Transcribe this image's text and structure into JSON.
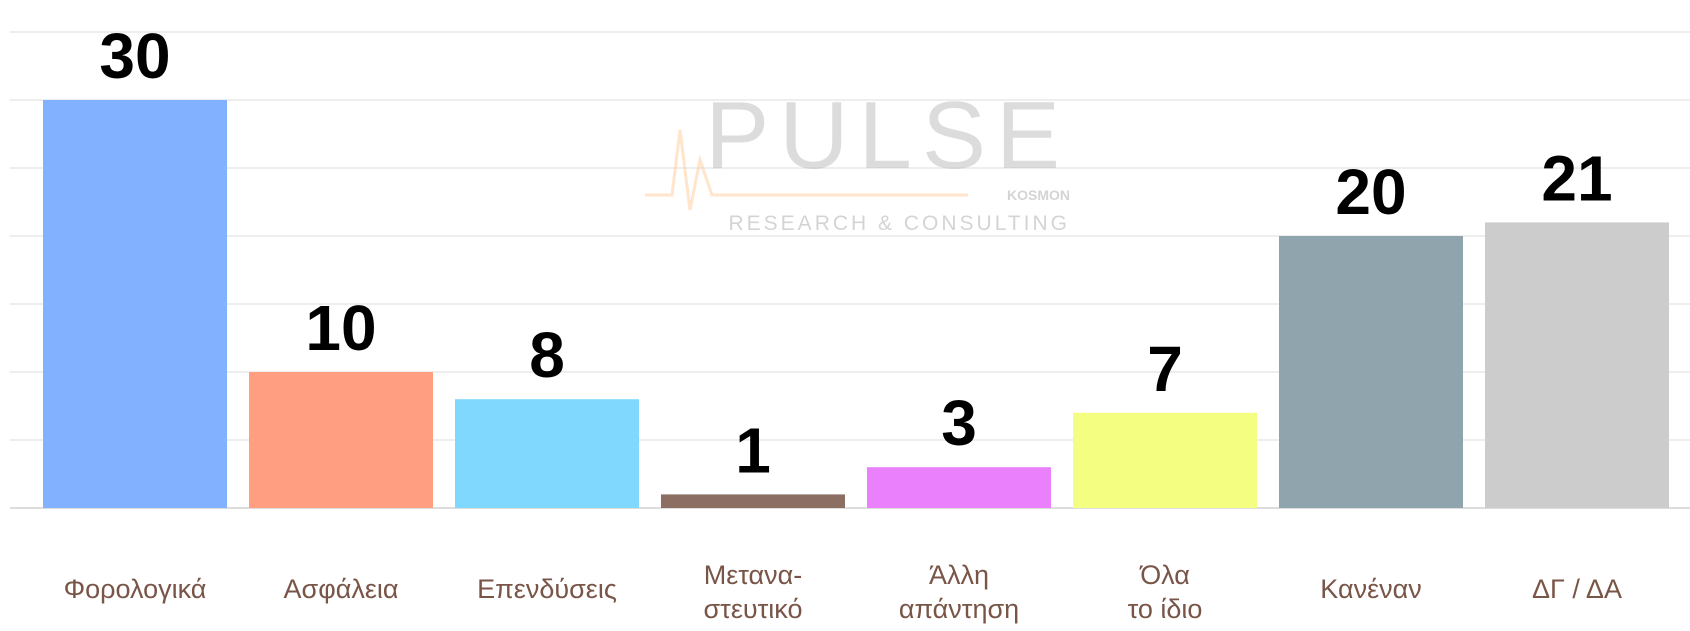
{
  "chart_data": {
    "type": "bar",
    "categories": [
      "Φορολογικά",
      "Ασφάλεια",
      "Επενδύσεις",
      "Μετανα-\nστευτικό",
      "Άλλη\nαπάντηση",
      "Όλα\nτο ίδιο",
      "Κανέναν",
      "ΔΓ / ΔΑ"
    ],
    "values": [
      30,
      10,
      8,
      1,
      3,
      7,
      20,
      21
    ],
    "colors": [
      "#82b1ff",
      "#ff9e80",
      "#80d8ff",
      "#8d6e63",
      "#ea80fc",
      "#f4ff81",
      "#90a4ae",
      "#cccccc"
    ],
    "ylim": [
      0,
      35
    ],
    "yticks": [
      0,
      5,
      10,
      15,
      20,
      25,
      30,
      35
    ],
    "grid": true,
    "watermark": {
      "brand": "PULSE",
      "sub": "KOSMON",
      "tagline": "RESEARCH & CONSULTING"
    }
  }
}
